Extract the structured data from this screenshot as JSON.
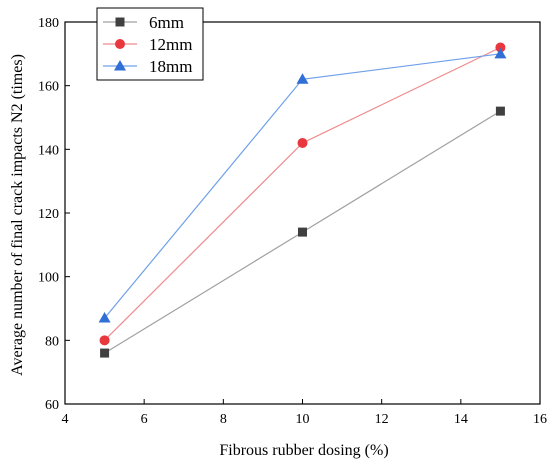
{
  "chart_data": {
    "type": "line",
    "xlabel": "Fibrous rubber dosing (%)",
    "ylabel": "Average number of final crack impacts N2 (times)",
    "xlim": [
      4,
      16
    ],
    "ylim": [
      60,
      180
    ],
    "xticks": [
      4,
      6,
      8,
      10,
      12,
      14,
      16
    ],
    "yticks": [
      60,
      80,
      100,
      120,
      140,
      160,
      180
    ],
    "x": [
      5,
      10,
      15
    ],
    "grid": false,
    "legend_position": "top-left",
    "series": [
      {
        "name": "6mm",
        "values": [
          76,
          114,
          152
        ],
        "color": "#404040",
        "marker": "square",
        "line_color": "#a0a0a0"
      },
      {
        "name": "12mm",
        "values": [
          80,
          142,
          172
        ],
        "color": "#e8383d",
        "marker": "circle",
        "line_color": "#f08a8c"
      },
      {
        "name": "18mm",
        "values": [
          87,
          162,
          170
        ],
        "color": "#2f6fd6",
        "marker": "triangle",
        "line_color": "#6fa0e8"
      }
    ]
  }
}
